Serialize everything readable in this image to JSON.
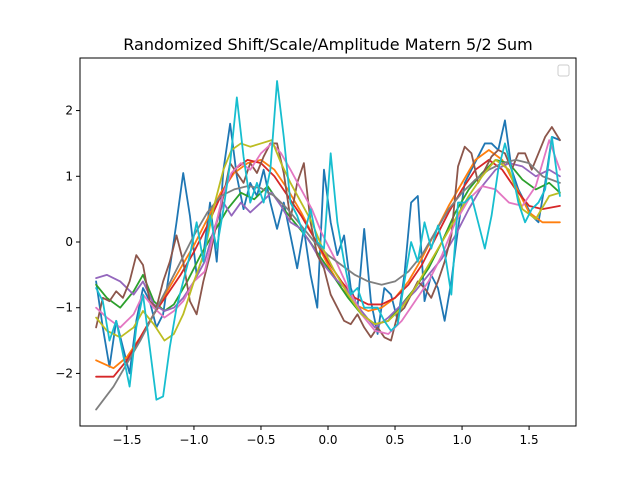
{
  "chart_data": {
    "type": "line",
    "title": "Randomized Shift/Scale/Amplitude Matern 5/2 Sum",
    "xlabel": "",
    "ylabel": "",
    "xlim": [
      -1.85,
      1.85
    ],
    "ylim": [
      -2.8,
      2.8
    ],
    "xticks": [
      -1.5,
      -1.0,
      -0.5,
      0.0,
      0.5,
      1.0,
      1.5
    ],
    "xtick_labels": [
      "−1.5",
      "−1.0",
      "−0.5",
      "0.0",
      "0.5",
      "1.0",
      "1.5"
    ],
    "yticks": [
      -2,
      -1,
      0,
      1,
      2
    ],
    "ytick_labels": [
      "−2",
      "−1",
      "0",
      "1",
      "2"
    ],
    "grid": false,
    "legend": {
      "placement": "upper right",
      "entries": []
    },
    "series": [
      {
        "color": "#1f77b4",
        "x": [
          -1.73,
          -1.68,
          -1.63,
          -1.58,
          -1.53,
          -1.48,
          -1.43,
          -1.38,
          -1.33,
          -1.28,
          -1.23,
          -1.18,
          -1.13,
          -1.08,
          -1.03,
          -0.98,
          -0.93,
          -0.88,
          -0.83,
          -0.78,
          -0.73,
          -0.68,
          -0.63,
          -0.58,
          -0.53,
          -0.48,
          -0.43,
          -0.38,
          -0.33,
          -0.28,
          -0.23,
          -0.18,
          -0.13,
          -0.08,
          -0.03,
          0.02,
          0.07,
          0.12,
          0.17,
          0.22,
          0.27,
          0.32,
          0.37,
          0.42,
          0.47,
          0.52,
          0.57,
          0.62,
          0.67,
          0.72,
          0.77,
          0.82,
          0.87,
          0.92,
          0.97,
          1.02,
          1.07,
          1.12,
          1.17,
          1.22,
          1.27,
          1.32,
          1.37,
          1.42,
          1.47,
          1.52,
          1.57,
          1.62,
          1.67,
          1.73
        ],
        "y": [
          -0.6,
          -1.3,
          -1.9,
          -1.2,
          -1.6,
          -2.0,
          -1.2,
          -0.7,
          -0.9,
          -1.3,
          -1.1,
          -0.4,
          0.3,
          1.05,
          0.4,
          -0.5,
          -0.2,
          0.6,
          -0.3,
          1.1,
          1.8,
          1.0,
          0.5,
          0.9,
          0.7,
          1.1,
          0.6,
          0.2,
          0.6,
          0.1,
          -0.4,
          0.2,
          -0.5,
          -1.0,
          1.1,
          0.3,
          -0.2,
          0.1,
          -0.7,
          -1.0,
          0.2,
          -0.9,
          -1.4,
          -0.7,
          -0.8,
          -1.2,
          -0.5,
          0.6,
          0.7,
          -0.9,
          -0.5,
          -0.7,
          -1.2,
          -0.6,
          0.2,
          0.9,
          1.1,
          1.3,
          1.5,
          1.5,
          1.4,
          1.85,
          1.1,
          0.8,
          0.6,
          0.4,
          0.3,
          0.9,
          1.6,
          1.55
        ]
      },
      {
        "color": "#ff7f0e",
        "x": [
          -1.73,
          -1.6,
          -1.5,
          -1.4,
          -1.3,
          -1.2,
          -1.1,
          -1.0,
          -0.9,
          -0.8,
          -0.7,
          -0.6,
          -0.5,
          -0.4,
          -0.3,
          -0.2,
          -0.1,
          0.0,
          0.1,
          0.2,
          0.3,
          0.4,
          0.5,
          0.6,
          0.7,
          0.8,
          0.9,
          1.0,
          1.1,
          1.2,
          1.3,
          1.4,
          1.5,
          1.6,
          1.73
        ],
        "y": [
          -1.8,
          -1.92,
          -1.75,
          -1.45,
          -1.1,
          -0.75,
          -0.4,
          -0.05,
          0.35,
          0.75,
          1.05,
          1.2,
          1.25,
          1.1,
          0.8,
          0.45,
          0.05,
          -0.35,
          -0.7,
          -0.95,
          -1.05,
          -1.0,
          -0.85,
          -0.6,
          -0.25,
          0.15,
          0.55,
          0.9,
          1.25,
          1.4,
          1.25,
          0.85,
          0.45,
          0.3,
          0.3
        ]
      },
      {
        "color": "#2ca02c",
        "x": [
          -1.73,
          -1.65,
          -1.55,
          -1.45,
          -1.38,
          -1.3,
          -1.22,
          -1.15,
          -1.05,
          -0.95,
          -0.85,
          -0.75,
          -0.65,
          -0.55,
          -0.45,
          -0.35,
          -0.25,
          -0.15,
          -0.05,
          0.05,
          0.15,
          0.25,
          0.35,
          0.45,
          0.55,
          0.65,
          0.75,
          0.85,
          0.95,
          1.05,
          1.15,
          1.25,
          1.35,
          1.45,
          1.55,
          1.65,
          1.73
        ],
        "y": [
          -0.65,
          -0.85,
          -1.0,
          -0.75,
          -0.5,
          -0.9,
          -1.05,
          -0.95,
          -0.6,
          -0.2,
          0.15,
          0.5,
          0.75,
          0.65,
          0.85,
          0.55,
          0.3,
          0.05,
          -0.25,
          -0.55,
          -0.85,
          -1.1,
          -1.25,
          -1.2,
          -0.95,
          -0.7,
          -0.4,
          0.0,
          0.45,
          0.8,
          1.05,
          1.25,
          1.2,
          0.95,
          0.8,
          0.9,
          0.75
        ]
      },
      {
        "color": "#d62728",
        "x": [
          -1.73,
          -1.6,
          -1.5,
          -1.4,
          -1.3,
          -1.2,
          -1.1,
          -1.0,
          -0.9,
          -0.8,
          -0.7,
          -0.6,
          -0.5,
          -0.4,
          -0.3,
          -0.2,
          -0.1,
          0.0,
          0.1,
          0.2,
          0.3,
          0.4,
          0.5,
          0.6,
          0.7,
          0.8,
          0.9,
          1.0,
          1.1,
          1.2,
          1.3,
          1.4,
          1.5,
          1.6,
          1.73
        ],
        "y": [
          -2.05,
          -2.05,
          -1.8,
          -1.45,
          -1.1,
          -0.8,
          -0.5,
          -0.15,
          0.25,
          0.7,
          1.1,
          1.25,
          1.2,
          1.0,
          0.7,
          0.4,
          0.05,
          -0.3,
          -0.6,
          -0.85,
          -0.95,
          -0.95,
          -0.85,
          -0.65,
          -0.35,
          0.05,
          0.45,
          0.8,
          1.1,
          1.25,
          1.1,
          0.8,
          0.55,
          0.5,
          0.55
        ]
      },
      {
        "color": "#9467bd",
        "x": [
          -1.73,
          -1.65,
          -1.55,
          -1.45,
          -1.38,
          -1.3,
          -1.22,
          -1.15,
          -1.08,
          -1.0,
          -0.92,
          -0.85,
          -0.78,
          -0.72,
          -0.65,
          -0.58,
          -0.5,
          -0.42,
          -0.35,
          -0.28,
          -0.2,
          -0.12,
          -0.05,
          0.05,
          0.15,
          0.25,
          0.35,
          0.45,
          0.55,
          0.65,
          0.75,
          0.85,
          0.95,
          1.05,
          1.15,
          1.25,
          1.35,
          1.45,
          1.55,
          1.65,
          1.73
        ],
        "y": [
          -0.55,
          -0.5,
          -0.6,
          -0.8,
          -0.6,
          -0.95,
          -1.05,
          -1.0,
          -0.85,
          -0.6,
          -0.3,
          0.2,
          0.6,
          0.4,
          0.6,
          0.45,
          0.6,
          0.75,
          0.55,
          0.3,
          0.2,
          -0.05,
          -0.3,
          -0.55,
          -0.75,
          -1.05,
          -1.3,
          -1.15,
          -0.95,
          -0.75,
          -0.5,
          -0.25,
          0.1,
          0.5,
          0.85,
          1.1,
          1.2,
          1.15,
          1.0,
          1.1,
          1.0
        ]
      },
      {
        "color": "#8c564b",
        "x": [
          -1.73,
          -1.68,
          -1.63,
          -1.58,
          -1.53,
          -1.48,
          -1.43,
          -1.38,
          -1.33,
          -1.28,
          -1.23,
          -1.18,
          -1.13,
          -1.08,
          -1.03,
          -0.98,
          -0.93,
          -0.88,
          -0.83,
          -0.78,
          -0.73,
          -0.68,
          -0.63,
          -0.58,
          -0.53,
          -0.48,
          -0.43,
          -0.38,
          -0.33,
          -0.28,
          -0.23,
          -0.18,
          -0.13,
          -0.08,
          -0.03,
          0.02,
          0.07,
          0.12,
          0.17,
          0.22,
          0.27,
          0.32,
          0.37,
          0.42,
          0.47,
          0.52,
          0.57,
          0.62,
          0.67,
          0.72,
          0.77,
          0.82,
          0.87,
          0.92,
          0.97,
          1.02,
          1.07,
          1.12,
          1.17,
          1.22,
          1.27,
          1.32,
          1.37,
          1.42,
          1.47,
          1.52,
          1.57,
          1.62,
          1.67,
          1.73
        ],
        "y": [
          -1.3,
          -0.85,
          -0.9,
          -0.75,
          -0.85,
          -0.6,
          -0.2,
          -0.35,
          -0.9,
          -1.0,
          -0.6,
          -0.3,
          0.1,
          -0.3,
          -0.9,
          -1.1,
          -0.6,
          -0.2,
          0.3,
          0.7,
          1.2,
          1.05,
          0.9,
          1.2,
          1.05,
          1.3,
          1.5,
          1.5,
          1.05,
          0.35,
          0.9,
          1.2,
          0.3,
          -0.2,
          -0.4,
          -0.8,
          -1.0,
          -1.2,
          -1.25,
          -1.1,
          -1.3,
          -1.45,
          -1.3,
          -1.45,
          -1.5,
          -1.1,
          -1.0,
          -0.8,
          -0.6,
          -0.7,
          -0.85,
          -0.6,
          -0.3,
          0.1,
          1.15,
          1.45,
          1.35,
          0.9,
          1.1,
          1.3,
          1.4,
          1.35,
          1.1,
          1.35,
          1.35,
          1.1,
          1.35,
          1.6,
          1.75,
          1.55
        ]
      },
      {
        "color": "#e377c2",
        "x": [
          -1.73,
          -1.65,
          -1.55,
          -1.45,
          -1.38,
          -1.3,
          -1.22,
          -1.15,
          -1.08,
          -1.0,
          -0.92,
          -0.85,
          -0.78,
          -0.72,
          -0.65,
          -0.58,
          -0.5,
          -0.42,
          -0.35,
          -0.28,
          -0.2,
          -0.12,
          -0.05,
          0.05,
          0.15,
          0.25,
          0.35,
          0.45,
          0.55,
          0.65,
          0.75,
          0.85,
          0.95,
          1.05,
          1.15,
          1.25,
          1.35,
          1.45,
          1.55,
          1.65,
          1.73
        ],
        "y": [
          -1.0,
          -1.15,
          -1.3,
          -1.1,
          -0.8,
          -1.0,
          -1.15,
          -1.05,
          -0.9,
          -0.6,
          -0.45,
          0.15,
          0.75,
          1.05,
          1.2,
          1.1,
          1.35,
          1.5,
          1.35,
          1.1,
          0.8,
          0.5,
          0.15,
          -0.25,
          -0.7,
          -1.1,
          -1.35,
          -1.4,
          -1.2,
          -0.9,
          -0.6,
          -0.2,
          0.3,
          0.65,
          0.85,
          0.8,
          0.6,
          0.55,
          0.85,
          1.55,
          1.1
        ]
      },
      {
        "color": "#7f7f7f",
        "x": [
          -1.73,
          -1.6,
          -1.5,
          -1.4,
          -1.3,
          -1.2,
          -1.1,
          -1.0,
          -0.9,
          -0.8,
          -0.7,
          -0.6,
          -0.5,
          -0.4,
          -0.3,
          -0.2,
          -0.1,
          0.0,
          0.1,
          0.2,
          0.3,
          0.4,
          0.5,
          0.6,
          0.7,
          0.8,
          0.9,
          1.0,
          1.1,
          1.2,
          1.3,
          1.4,
          1.5,
          1.6,
          1.73
        ],
        "y": [
          -2.55,
          -2.2,
          -1.85,
          -1.5,
          -1.1,
          -0.7,
          -0.3,
          0.1,
          0.45,
          0.7,
          0.8,
          0.85,
          0.82,
          0.7,
          0.5,
          0.25,
          0.0,
          -0.2,
          -0.35,
          -0.5,
          -0.6,
          -0.65,
          -0.6,
          -0.45,
          -0.2,
          0.15,
          0.5,
          0.75,
          0.95,
          1.1,
          1.2,
          1.25,
          1.2,
          1.0,
          0.9
        ]
      },
      {
        "color": "#bcbd22",
        "x": [
          -1.73,
          -1.65,
          -1.55,
          -1.45,
          -1.38,
          -1.3,
          -1.22,
          -1.15,
          -1.08,
          -1.0,
          -0.92,
          -0.85,
          -0.78,
          -0.72,
          -0.65,
          -0.58,
          -0.5,
          -0.42,
          -0.35,
          -0.28,
          -0.2,
          -0.12,
          -0.05,
          0.05,
          0.15,
          0.25,
          0.35,
          0.45,
          0.55,
          0.65,
          0.75,
          0.85,
          0.95,
          1.05,
          1.15,
          1.25,
          1.35,
          1.45,
          1.55,
          1.65,
          1.73
        ],
        "y": [
          -1.15,
          -1.35,
          -1.45,
          -1.3,
          -1.05,
          -1.25,
          -1.5,
          -1.4,
          -1.1,
          -0.6,
          -0.15,
          0.55,
          1.1,
          1.4,
          1.5,
          1.45,
          1.5,
          1.55,
          1.2,
          0.9,
          0.6,
          0.3,
          -0.05,
          -0.45,
          -0.8,
          -1.1,
          -1.25,
          -1.2,
          -1.0,
          -0.7,
          -0.35,
          0.0,
          0.35,
          0.7,
          1.0,
          1.25,
          1.1,
          0.5,
          0.35,
          0.7,
          0.75
        ]
      },
      {
        "color": "#17becf",
        "x": [
          -1.73,
          -1.68,
          -1.63,
          -1.58,
          -1.53,
          -1.48,
          -1.43,
          -1.38,
          -1.33,
          -1.28,
          -1.23,
          -1.18,
          -1.13,
          -1.08,
          -1.03,
          -0.98,
          -0.93,
          -0.88,
          -0.83,
          -0.78,
          -0.73,
          -0.68,
          -0.63,
          -0.58,
          -0.53,
          -0.48,
          -0.43,
          -0.38,
          -0.33,
          -0.28,
          -0.23,
          -0.18,
          -0.13,
          -0.08,
          -0.03,
          0.02,
          0.07,
          0.12,
          0.17,
          0.22,
          0.27,
          0.32,
          0.37,
          0.42,
          0.47,
          0.52,
          0.57,
          0.62,
          0.67,
          0.72,
          0.77,
          0.82,
          0.87,
          0.92,
          0.97,
          1.02,
          1.07,
          1.12,
          1.17,
          1.22,
          1.27,
          1.32,
          1.37,
          1.42,
          1.47,
          1.52,
          1.57,
          1.62,
          1.67,
          1.73
        ],
        "y": [
          -0.7,
          -0.9,
          -1.5,
          -1.2,
          -1.7,
          -2.2,
          -1.3,
          -0.8,
          -1.6,
          -2.4,
          -2.35,
          -1.6,
          -1.0,
          -0.6,
          -0.2,
          0.3,
          -0.3,
          0.4,
          -0.1,
          0.5,
          1.2,
          2.2,
          1.3,
          0.6,
          0.9,
          0.6,
          1.1,
          2.45,
          1.6,
          0.6,
          0.4,
          0.1,
          0.5,
          0.0,
          -0.1,
          1.35,
          0.3,
          -0.3,
          -0.8,
          -0.7,
          -1.0,
          -1.0,
          -1.0,
          -1.2,
          -1.35,
          -1.25,
          -0.6,
          0.0,
          -0.3,
          0.3,
          -0.1,
          0.25,
          -0.15,
          -0.8,
          0.6,
          0.6,
          0.7,
          0.3,
          -0.1,
          0.4,
          1.1,
          1.5,
          1.1,
          0.6,
          0.3,
          0.5,
          0.6,
          0.8,
          1.6,
          0.7
        ]
      }
    ]
  }
}
